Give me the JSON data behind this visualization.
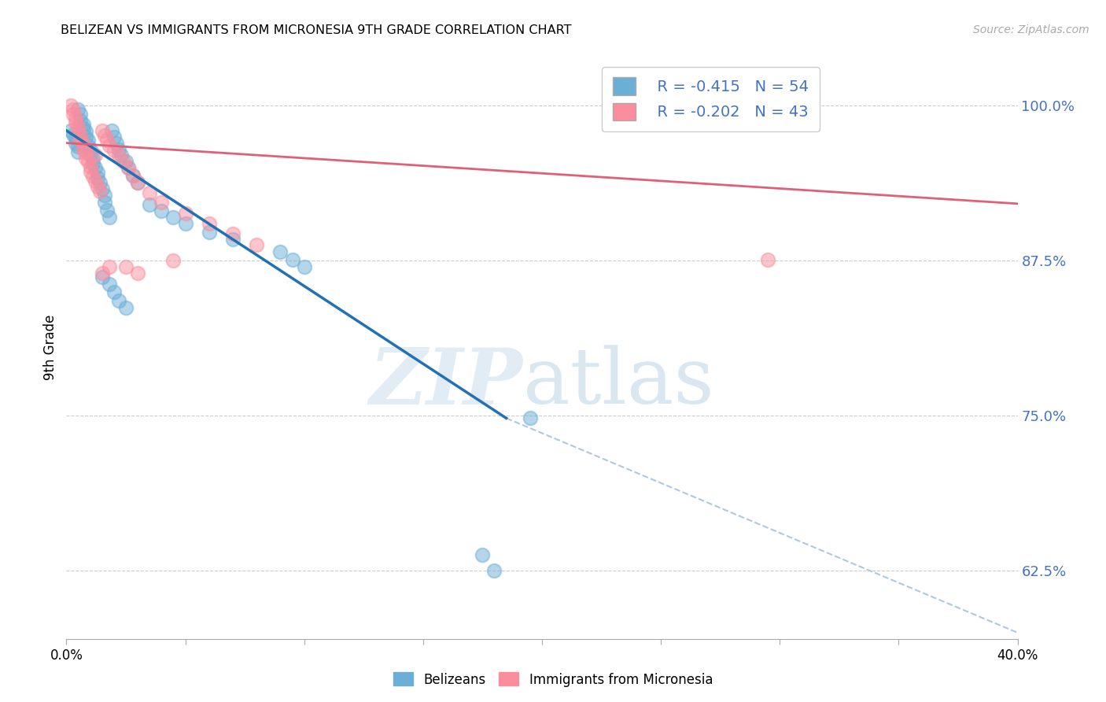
{
  "title": "BELIZEAN VS IMMIGRANTS FROM MICRONESIA 9TH GRADE CORRELATION CHART",
  "source": "Source: ZipAtlas.com",
  "ylabel": "9th Grade",
  "ytick_labels": [
    "100.0%",
    "87.5%",
    "75.0%",
    "62.5%"
  ],
  "ytick_values": [
    1.0,
    0.875,
    0.75,
    0.625
  ],
  "xmin": 0.0,
  "xmax": 0.4,
  "ymin": 0.57,
  "ymax": 1.04,
  "blue_color": "#6baed6",
  "pink_color": "#fc8d9c",
  "blue_line_color": "#2171b5",
  "pink_line_color": "#e0607a",
  "dashed_line_color": "#aec8e0",
  "legend_R1": "R = -0.415",
  "legend_N1": "N = 54",
  "legend_R2": "R = -0.202",
  "legend_N2": "N = 43",
  "blue_scatter_x": [
    0.002,
    0.003,
    0.004,
    0.004,
    0.005,
    0.005,
    0.005,
    0.006,
    0.006,
    0.007,
    0.007,
    0.008,
    0.008,
    0.009,
    0.009,
    0.01,
    0.01,
    0.011,
    0.011,
    0.012,
    0.013,
    0.013,
    0.014,
    0.015,
    0.016,
    0.016,
    0.017,
    0.018,
    0.019,
    0.02,
    0.021,
    0.022,
    0.023,
    0.025,
    0.026,
    0.028,
    0.03,
    0.035,
    0.04,
    0.045,
    0.05,
    0.06,
    0.07,
    0.09,
    0.095,
    0.1,
    0.015,
    0.018,
    0.02,
    0.022,
    0.025,
    0.175,
    0.18,
    0.195
  ],
  "blue_scatter_y": [
    0.98,
    0.977,
    0.974,
    0.97,
    0.967,
    0.963,
    0.997,
    0.993,
    0.988,
    0.985,
    0.982,
    0.979,
    0.975,
    0.972,
    0.968,
    0.965,
    0.961,
    0.958,
    0.954,
    0.95,
    0.946,
    0.942,
    0.938,
    0.933,
    0.928,
    0.922,
    0.916,
    0.91,
    0.98,
    0.975,
    0.97,
    0.965,
    0.96,
    0.955,
    0.95,
    0.944,
    0.938,
    0.92,
    0.915,
    0.91,
    0.905,
    0.898,
    0.892,
    0.882,
    0.876,
    0.87,
    0.862,
    0.856,
    0.85,
    0.843,
    0.837,
    0.638,
    0.625,
    0.748
  ],
  "pink_scatter_x": [
    0.002,
    0.003,
    0.003,
    0.004,
    0.004,
    0.005,
    0.005,
    0.006,
    0.006,
    0.007,
    0.007,
    0.008,
    0.008,
    0.009,
    0.01,
    0.01,
    0.011,
    0.012,
    0.013,
    0.014,
    0.015,
    0.016,
    0.017,
    0.018,
    0.02,
    0.022,
    0.024,
    0.026,
    0.028,
    0.03,
    0.035,
    0.04,
    0.05,
    0.06,
    0.07,
    0.08,
    0.045,
    0.025,
    0.015,
    0.012,
    0.018,
    0.295,
    0.03
  ],
  "pink_scatter_y": [
    1.0,
    0.997,
    0.993,
    0.99,
    0.986,
    0.983,
    0.979,
    0.976,
    0.972,
    0.969,
    0.965,
    0.962,
    0.958,
    0.955,
    0.951,
    0.947,
    0.943,
    0.939,
    0.935,
    0.931,
    0.98,
    0.976,
    0.972,
    0.968,
    0.964,
    0.96,
    0.955,
    0.95,
    0.944,
    0.938,
    0.93,
    0.922,
    0.913,
    0.905,
    0.897,
    0.888,
    0.875,
    0.87,
    0.865,
    0.96,
    0.87,
    0.876,
    0.865
  ],
  "blue_trend_x": [
    0.0,
    0.185
  ],
  "blue_trend_y": [
    0.98,
    0.748
  ],
  "pink_trend_x": [
    0.0,
    0.4
  ],
  "pink_trend_y": [
    0.97,
    0.921
  ],
  "dashed_trend_x": [
    0.185,
    0.4
  ],
  "dashed_trend_y": [
    0.748,
    0.575
  ]
}
